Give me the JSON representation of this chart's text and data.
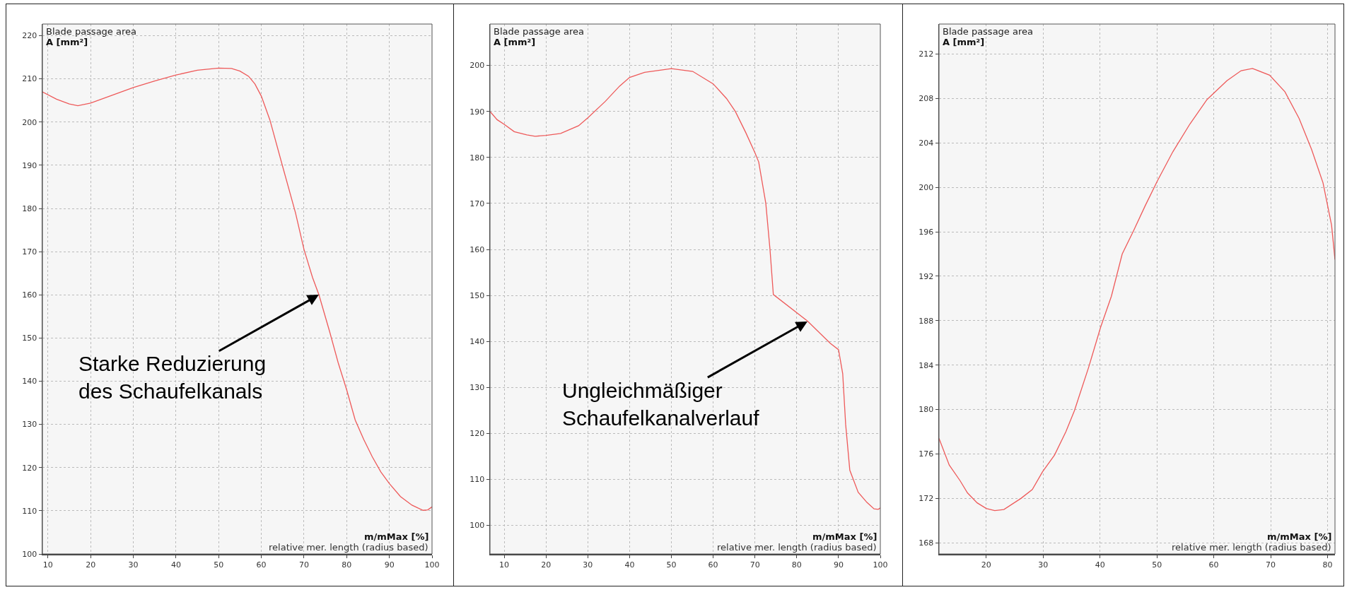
{
  "chart_data": [
    {
      "type": "line",
      "title": "Blade passage area",
      "ylabel": "A [mm²]",
      "xlabel": "m/mMax [%]",
      "annotations": [
        "relative mer. length (radius based)",
        {
          "text": "Starke Reduzierung\ndes Schaufelkanals",
          "x": 73.5,
          "y": 160
        }
      ],
      "x": [
        8.7,
        12,
        15,
        17,
        20,
        25,
        30,
        35,
        40,
        45,
        50,
        53,
        55,
        57,
        58.5,
        60,
        62,
        65,
        68,
        70,
        72,
        73.5,
        76,
        78,
        80,
        82,
        84,
        86,
        88,
        90,
        92.6,
        95.3,
        97.9,
        99,
        100
      ],
      "series": [
        {
          "color": "#ee5a5a",
          "values": [
            207,
            205.3,
            204.2,
            203.8,
            204.4,
            206.2,
            208,
            209.5,
            210.9,
            212,
            212.5,
            212.4,
            211.8,
            210.6,
            208.8,
            206,
            200.5,
            189.7,
            179,
            170.5,
            164,
            160,
            151.5,
            144.3,
            138,
            131,
            126.5,
            122.5,
            119,
            116.3,
            113.3,
            111.3,
            110.1,
            110.2,
            110.9
          ]
        }
      ],
      "xlim": [
        8.7,
        100
      ],
      "ylim": [
        100,
        222.7
      ],
      "xticks": [
        10,
        20,
        30,
        40,
        50,
        60,
        70,
        80,
        90,
        100
      ],
      "yticks": [
        100,
        110,
        120,
        130,
        140,
        150,
        160,
        170,
        180,
        190,
        200,
        210,
        220
      ],
      "grid": true,
      "marker": "none",
      "line_style": "solid"
    },
    {
      "type": "line",
      "title": "Blade passage area",
      "ylabel": "A [mm²]",
      "xlabel": "m/mMax [%]",
      "annotations": [
        "relative mer. length (radius based)",
        {
          "text": "Ungleichmäßiger\nSchaufelkanalverlauf",
          "x": 82.6,
          "y": 144.4
        }
      ],
      "x": [
        6.6,
        8.3,
        10,
        12.4,
        15.4,
        17.4,
        20,
        23.5,
        27.8,
        30,
        34.2,
        37.6,
        40,
        43.6,
        50,
        55.1,
        60,
        63.2,
        65.3,
        67.8,
        70,
        70.9,
        72.6,
        73.6,
        74.4,
        82.6,
        88,
        90,
        91,
        91.7,
        92.7,
        94.7,
        96.8,
        98.5,
        99.5,
        100
      ],
      "series": [
        {
          "color": "#ee5a5a",
          "values": [
            190,
            188.2,
            187.2,
            185.6,
            184.9,
            184.6,
            184.8,
            185.2,
            186.9,
            188.6,
            192.2,
            195.5,
            197.4,
            198.5,
            199.3,
            198.7,
            196,
            192.8,
            190,
            185.4,
            181,
            179,
            170,
            160,
            150.2,
            144.4,
            139.6,
            138.2,
            133,
            122,
            112,
            107.2,
            105,
            103.6,
            103.5,
            103.8
          ]
        }
      ],
      "xlim": [
        6.6,
        100
      ],
      "ylim": [
        93.8,
        209
      ],
      "xticks": [
        10,
        20,
        30,
        40,
        50,
        60,
        70,
        80,
        90,
        100
      ],
      "yticks": [
        100,
        110,
        120,
        130,
        140,
        150,
        160,
        170,
        180,
        190,
        200
      ],
      "grid": true,
      "marker": "none",
      "line_style": "solid"
    },
    {
      "type": "line",
      "title": "Blade passage area",
      "ylabel": "A [mm²]",
      "xlabel": "m/mMax [%]",
      "annotations": [
        "relative mer. length (radius based)"
      ],
      "x": [
        11.7,
        13.5,
        15.4,
        16.7,
        18.4,
        20,
        21.5,
        23.1,
        26.1,
        28.1,
        29.9,
        32,
        34,
        35.5,
        38,
        40.1,
        42,
        43.9,
        45.9,
        47.9,
        50.1,
        52.8,
        55.8,
        58.8,
        62.3,
        64.8,
        66.8,
        69.8,
        72.5,
        75,
        77.2,
        79.2,
        80.7,
        81.3
      ],
      "series": [
        {
          "color": "#ee5a5a",
          "values": [
            177.4,
            175,
            173.6,
            172.5,
            171.6,
            171.1,
            170.9,
            171,
            172,
            172.8,
            174.4,
            175.9,
            178,
            179.9,
            183.8,
            187.4,
            190.2,
            194,
            196.1,
            198.3,
            200.6,
            203.2,
            205.7,
            207.9,
            209.6,
            210.5,
            210.7,
            210.1,
            208.6,
            206.2,
            203.4,
            200.4,
            196.6,
            193.5
          ]
        }
      ],
      "xlim": [
        11.7,
        81.3
      ],
      "ylim": [
        167,
        214.7
      ],
      "xticks": [
        20,
        30,
        40,
        50,
        60,
        70,
        80
      ],
      "yticks": [
        168,
        172,
        176,
        180,
        184,
        188,
        192,
        196,
        200,
        204,
        208,
        212
      ],
      "grid": true,
      "marker": "none",
      "line_style": "solid"
    }
  ]
}
